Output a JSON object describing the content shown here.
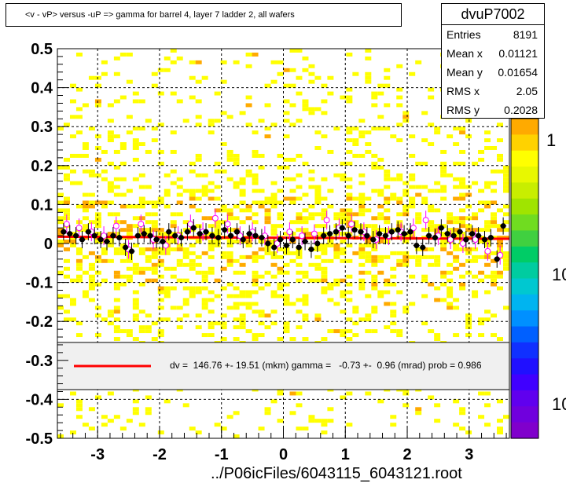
{
  "title": "<v - vP>       versus  -uP =>  gamma for barrel 4, layer 7 ladder 2, all wafers",
  "stats": {
    "name": "dvuP7002",
    "rows": [
      {
        "label": "Entries",
        "value": "8191"
      },
      {
        "label": "Mean x",
        "value": "0.01121"
      },
      {
        "label": "Mean y",
        "value": "0.01654"
      },
      {
        "label": "RMS x",
        "value": "2.05"
      },
      {
        "label": "RMS y",
        "value": "0.2028"
      }
    ]
  },
  "fit_text": "dv =  146.76 +- 19.51 (mkm) gamma =   -0.73 +-  0.96 (mrad) prob = 0.986",
  "x_title": "../P06icFiles/6043115_6043121.root",
  "palette_labels": [
    "1",
    "10",
    "10"
  ],
  "colors": {
    "fill_yellow": "#ffff00",
    "fill_orange": "#ffaa00",
    "fit_line": "#ff0000",
    "legend_bg": "#f0f0f0",
    "profile_black": "#000000",
    "profile_open": "#ff00ff"
  },
  "chart_data": {
    "type": "scatter",
    "title": "<v - vP>       versus  -uP =>  gamma for barrel 4, layer 7 ladder 2, all wafers",
    "xlabel": "../P06icFiles/6043115_6043121.root",
    "ylabel": "",
    "xlim": [
      -3.65,
      3.65
    ],
    "ylim": [
      -0.5,
      0.5
    ],
    "x_ticks": [
      -3,
      -2,
      -1,
      0,
      1,
      2,
      3
    ],
    "y_ticks": [
      -0.5,
      -0.4,
      -0.3,
      -0.2,
      -0.1,
      0,
      0.1,
      0.2,
      0.3,
      0.4,
      0.5
    ],
    "grid": true,
    "fit": {
      "slope": -0.00073,
      "intercept": 0.0147
    },
    "series": [
      {
        "marker": "filled-circle",
        "x": [
          -3.55,
          -3.45,
          -3.35,
          -3.25,
          -3.15,
          -3.05,
          -2.95,
          -2.85,
          -2.75,
          -2.65,
          -2.55,
          -2.45,
          -2.35,
          -2.25,
          -2.15,
          -2.05,
          -1.95,
          -1.85,
          -1.75,
          -1.65,
          -1.55,
          -1.45,
          -1.35,
          -1.25,
          -1.15,
          -1.05,
          -0.95,
          -0.85,
          -0.75,
          -0.65,
          -0.55,
          -0.45,
          -0.35,
          -0.25,
          -0.15,
          -0.05,
          0.05,
          0.15,
          0.25,
          0.35,
          0.45,
          0.55,
          0.65,
          0.75,
          0.85,
          0.95,
          1.05,
          1.15,
          1.25,
          1.35,
          1.45,
          1.55,
          1.65,
          1.75,
          1.85,
          1.95,
          2.05,
          2.15,
          2.25,
          2.35,
          2.45,
          2.55,
          2.65,
          2.75,
          2.85,
          2.95,
          3.05,
          3.15,
          3.25,
          3.35,
          3.45,
          3.55
        ],
        "y": [
          0.03,
          0.025,
          0.02,
          0.01,
          0.03,
          0.02,
          0.01,
          0.005,
          0.02,
          0.015,
          -0.01,
          -0.02,
          0.02,
          0.025,
          0.02,
          0.01,
          0.005,
          0.03,
          0.02,
          0.015,
          0.03,
          0.04,
          0.025,
          0.03,
          0.02,
          0.015,
          0.035,
          0.02,
          0.03,
          0.01,
          0.025,
          0.02,
          0.015,
          0.0,
          -0.01,
          0.01,
          -0.005,
          0.01,
          -0.01,
          0.005,
          -0.015,
          0.0,
          0.02,
          0.025,
          0.03,
          0.04,
          0.02,
          0.035,
          0.03,
          0.02,
          0.01,
          0.025,
          0.02,
          0.03,
          0.035,
          0.025,
          0.03,
          -0.005,
          -0.01,
          0.02,
          0.015,
          0.04,
          0.025,
          0.02,
          0.03,
          0.01,
          0.025,
          0.02,
          0.01,
          0.015,
          -0.04,
          0.045
        ]
      },
      {
        "marker": "open-circle",
        "x": [
          -3.5,
          -3.3,
          -3.1,
          -2.9,
          -2.7,
          -2.5,
          -2.3,
          -2.1,
          -1.9,
          -1.7,
          -1.5,
          -1.3,
          -1.1,
          -0.9,
          -0.7,
          -0.5,
          -0.3,
          -0.1,
          0.1,
          0.3,
          0.5,
          0.7,
          0.9,
          1.1,
          1.3,
          1.5,
          1.7,
          1.9,
          2.1,
          2.3,
          2.5,
          2.7,
          2.9,
          3.1,
          3.3,
          3.5
        ],
        "y": [
          0.05,
          0.04,
          0.03,
          0.02,
          0.045,
          -0.015,
          0.05,
          0.01,
          -0.005,
          0.02,
          0.05,
          0.03,
          0.065,
          0.05,
          0.02,
          0.03,
          0.02,
          0.0,
          0.03,
          0.02,
          0.025,
          0.06,
          0.04,
          0.05,
          0.03,
          0.01,
          0.02,
          0.03,
          0.04,
          0.06,
          0.02,
          0.01,
          0.0,
          0.01,
          -0.02,
          -0.03
        ]
      }
    ]
  }
}
